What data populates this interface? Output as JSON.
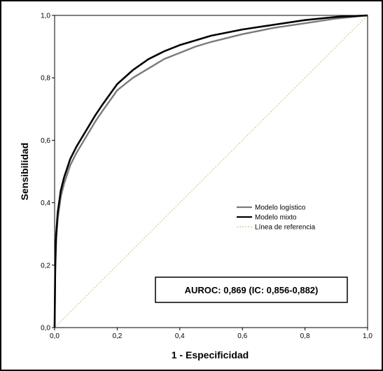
{
  "chart_data": {
    "type": "line",
    "title": "",
    "xlabel": "1 - Especificidad",
    "ylabel": "Sensibilidad",
    "xlim": [
      0,
      1
    ],
    "ylim": [
      0,
      1
    ],
    "xticks": [
      "0,0",
      "0,2",
      "0,4",
      "0,6",
      "0,8",
      "1,0"
    ],
    "yticks": [
      "0,0",
      "0,2",
      "0,4",
      "0,6",
      "0,8",
      "1,0"
    ],
    "grid": false,
    "legend_position": "center-right",
    "series": [
      {
        "name": "Modelo logístico",
        "color": "#7a7a7a",
        "x": [
          0,
          0.002,
          0.005,
          0.01,
          0.02,
          0.03,
          0.05,
          0.07,
          0.1,
          0.13,
          0.15,
          0.2,
          0.25,
          0.3,
          0.35,
          0.4,
          0.45,
          0.5,
          0.6,
          0.7,
          0.8,
          0.9,
          1.0
        ],
        "y": [
          0,
          0.18,
          0.28,
          0.35,
          0.42,
          0.46,
          0.52,
          0.56,
          0.61,
          0.66,
          0.69,
          0.76,
          0.8,
          0.83,
          0.86,
          0.88,
          0.9,
          0.915,
          0.94,
          0.96,
          0.975,
          0.99,
          1.0
        ]
      },
      {
        "name": "Modelo mixto",
        "color": "#000000",
        "x": [
          0,
          0.002,
          0.005,
          0.01,
          0.02,
          0.03,
          0.05,
          0.07,
          0.1,
          0.13,
          0.15,
          0.2,
          0.25,
          0.3,
          0.35,
          0.4,
          0.45,
          0.5,
          0.6,
          0.7,
          0.8,
          0.9,
          1.0
        ],
        "y": [
          0,
          0.2,
          0.3,
          0.37,
          0.44,
          0.48,
          0.54,
          0.58,
          0.63,
          0.68,
          0.71,
          0.78,
          0.825,
          0.86,
          0.885,
          0.905,
          0.92,
          0.935,
          0.955,
          0.97,
          0.985,
          0.995,
          1.0
        ]
      },
      {
        "name": "Línea de referencia",
        "color": "#c8c48a",
        "dashed": true,
        "x": [
          0,
          1
        ],
        "y": [
          0,
          1
        ]
      }
    ],
    "annotation": "AUROC: 0,869 (IC: 0,856-0,882)"
  }
}
